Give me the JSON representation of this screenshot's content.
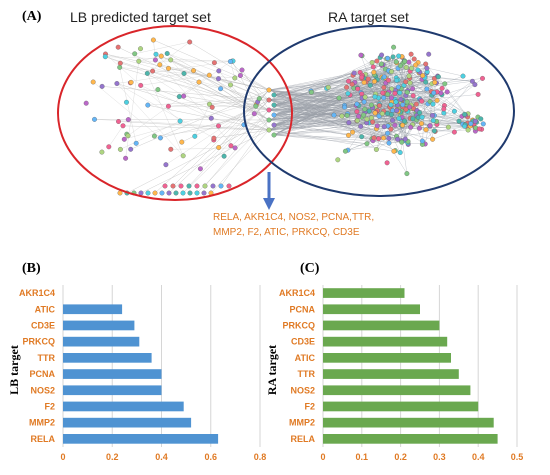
{
  "panel_a": {
    "label": "(A)",
    "left_set_title": "LB predicted target set",
    "right_set_title": "RA target set",
    "left_color": "#d9252a",
    "right_color": "#1f3a6e",
    "arrow_color": "#4a72c4",
    "gene_lines": [
      "RELA, AKR1C4, NOS2, PCNA,TTR,",
      "MMP2, F2, ATIC, PRKCQ, CD3E"
    ]
  },
  "chart_data": [
    {
      "panel_label": "(B)",
      "type": "bar",
      "orientation": "horizontal",
      "ylabel": "LB target",
      "categories": [
        "AKR1C4",
        "ATIC",
        "CD3E",
        "PRKCQ",
        "TTR",
        "PCNA",
        "NOS2",
        "F2",
        "MMP2",
        "RELA"
      ],
      "values": [
        0,
        0.24,
        0.29,
        0.31,
        0.36,
        0.4,
        0.4,
        0.49,
        0.52,
        0.63
      ],
      "xlim": [
        0,
        0.8
      ],
      "xticks": [
        "0",
        "0.2",
        "0.4",
        "0.6",
        "0.8"
      ],
      "xtick_values": [
        0,
        0.2,
        0.4,
        0.6,
        0.8
      ],
      "color": "#4f93d2",
      "grid": true
    },
    {
      "panel_label": "(C)",
      "type": "bar",
      "orientation": "horizontal",
      "ylabel": "RA target",
      "categories": [
        "AKR1C4",
        "PCNA",
        "PRKCQ",
        "CD3E",
        "ATIC",
        "TTR",
        "NOS2",
        "F2",
        "MMP2",
        "RELA"
      ],
      "values": [
        0.21,
        0.25,
        0.3,
        0.32,
        0.33,
        0.35,
        0.38,
        0.4,
        0.44,
        0.45
      ],
      "xlim": [
        0,
        0.5
      ],
      "xticks": [
        "0",
        "0.1",
        "0.2",
        "0.3",
        "0.4",
        "0.5"
      ],
      "xtick_values": [
        0,
        0.1,
        0.2,
        0.3,
        0.4,
        0.5
      ],
      "color": "#6aa84f",
      "grid": true
    }
  ]
}
